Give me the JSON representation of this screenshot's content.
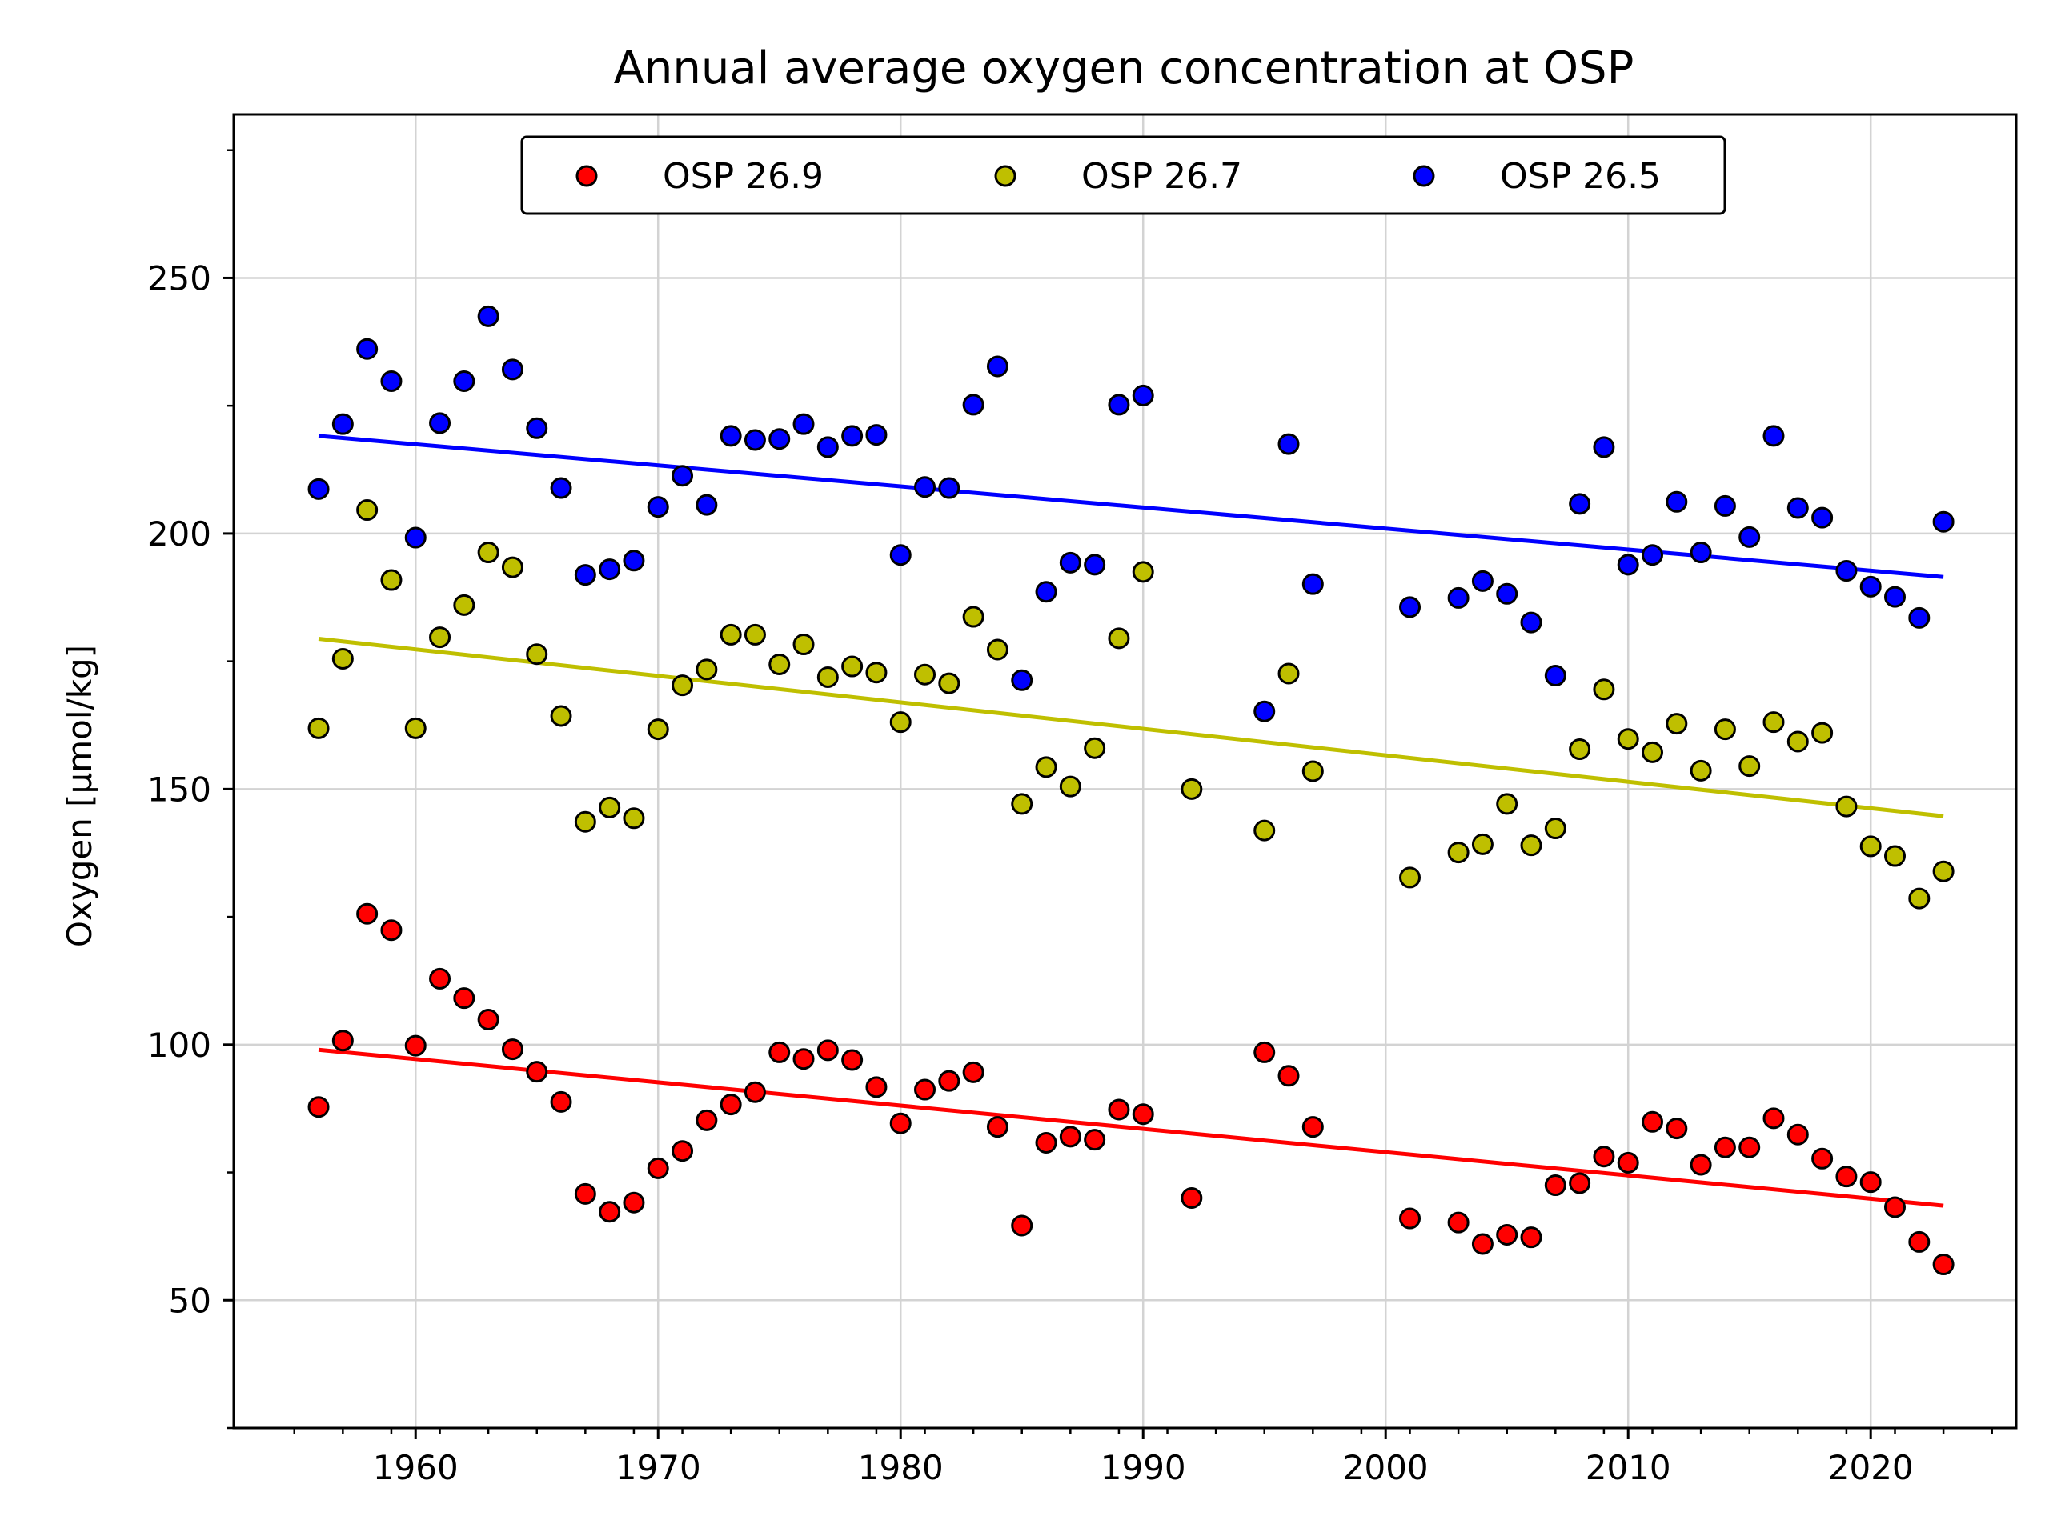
{
  "chart_data": {
    "type": "scatter",
    "title": "Annual average oxygen concentration at OSP",
    "xlabel": "",
    "ylabel": "Oxygen [μmol/kg]",
    "xlim": [
      1952.5,
      2026
    ],
    "ylim": [
      25,
      282
    ],
    "xticks": [
      1960,
      1970,
      1980,
      1990,
      2000,
      2010,
      2020
    ],
    "yticks": [
      50,
      100,
      150,
      200,
      250
    ],
    "grid": true,
    "legend_position": "top-center",
    "series": [
      {
        "name": "OSP 26.9",
        "color": "#ff0000",
        "points": [
          [
            1956,
            87.8
          ],
          [
            1957,
            100.8
          ],
          [
            1958,
            125.6
          ],
          [
            1959,
            122.4
          ],
          [
            1960,
            99.8
          ],
          [
            1961,
            112.9
          ],
          [
            1962,
            109.1
          ],
          [
            1963,
            104.9
          ],
          [
            1964,
            99.1
          ],
          [
            1965,
            94.7
          ],
          [
            1966,
            88.8
          ],
          [
            1967,
            70.8
          ],
          [
            1968,
            67.3
          ],
          [
            1969,
            69.1
          ],
          [
            1970,
            75.8
          ],
          [
            1971,
            79.2
          ],
          [
            1972,
            85.2
          ],
          [
            1973,
            88.3
          ],
          [
            1974,
            90.7
          ],
          [
            1975,
            98.5
          ],
          [
            1976,
            97.2
          ],
          [
            1977,
            98.9
          ],
          [
            1978,
            97.0
          ],
          [
            1979,
            91.7
          ],
          [
            1980,
            84.6
          ],
          [
            1981,
            91.2
          ],
          [
            1982,
            92.9
          ],
          [
            1983,
            94.6
          ],
          [
            1984,
            83.9
          ],
          [
            1985,
            64.6
          ],
          [
            1986,
            80.8
          ],
          [
            1987,
            82.0
          ],
          [
            1988,
            81.4
          ],
          [
            1989,
            87.3
          ],
          [
            1990,
            86.4
          ],
          [
            1992,
            70.0
          ],
          [
            1995,
            98.5
          ],
          [
            1996,
            93.9
          ],
          [
            1997,
            83.9
          ],
          [
            2001,
            66.0
          ],
          [
            2003,
            65.2
          ],
          [
            2004,
            61.0
          ],
          [
            2005,
            62.8
          ],
          [
            2006,
            62.3
          ],
          [
            2007,
            72.5
          ],
          [
            2008,
            72.9
          ],
          [
            2009,
            78.1
          ],
          [
            2010,
            76.9
          ],
          [
            2011,
            84.9
          ],
          [
            2012,
            83.6
          ],
          [
            2013,
            76.5
          ],
          [
            2014,
            79.9
          ],
          [
            2015,
            79.9
          ],
          [
            2016,
            85.6
          ],
          [
            2017,
            82.4
          ],
          [
            2018,
            77.7
          ],
          [
            2019,
            74.2
          ],
          [
            2020,
            73.1
          ],
          [
            2021,
            68.2
          ],
          [
            2022,
            61.4
          ],
          [
            2023,
            57.0
          ]
        ],
        "trend": [
          [
            1956,
            99.0
          ],
          [
            2023,
            68.5
          ]
        ]
      },
      {
        "name": "OSP 26.7",
        "color": "#bfbf00",
        "points": [
          [
            1956,
            161.9
          ],
          [
            1957,
            175.5
          ],
          [
            1958,
            204.6
          ],
          [
            1959,
            190.9
          ],
          [
            1960,
            161.9
          ],
          [
            1961,
            179.7
          ],
          [
            1962,
            186.0
          ],
          [
            1963,
            196.3
          ],
          [
            1964,
            193.4
          ],
          [
            1965,
            176.4
          ],
          [
            1966,
            164.3
          ],
          [
            1967,
            143.6
          ],
          [
            1968,
            146.4
          ],
          [
            1969,
            144.3
          ],
          [
            1970,
            161.7
          ],
          [
            1971,
            170.3
          ],
          [
            1972,
            173.4
          ],
          [
            1973,
            180.2
          ],
          [
            1974,
            180.2
          ],
          [
            1975,
            174.4
          ],
          [
            1976,
            178.3
          ],
          [
            1977,
            171.9
          ],
          [
            1978,
            174.0
          ],
          [
            1979,
            172.8
          ],
          [
            1980,
            163.1
          ],
          [
            1981,
            172.4
          ],
          [
            1982,
            170.7
          ],
          [
            1983,
            183.7
          ],
          [
            1984,
            177.3
          ],
          [
            1985,
            147.1
          ],
          [
            1986,
            154.3
          ],
          [
            1987,
            150.5
          ],
          [
            1988,
            158.0
          ],
          [
            1989,
            179.5
          ],
          [
            1990,
            192.5
          ],
          [
            1992,
            150.0
          ],
          [
            1995,
            141.9
          ],
          [
            1996,
            172.6
          ],
          [
            1997,
            153.5
          ],
          [
            2001,
            132.7
          ],
          [
            2003,
            137.6
          ],
          [
            2004,
            139.2
          ],
          [
            2005,
            147.1
          ],
          [
            2006,
            139.0
          ],
          [
            2007,
            142.3
          ],
          [
            2008,
            157.8
          ],
          [
            2009,
            169.5
          ],
          [
            2010,
            159.8
          ],
          [
            2011,
            157.2
          ],
          [
            2012,
            162.8
          ],
          [
            2013,
            153.6
          ],
          [
            2014,
            161.7
          ],
          [
            2015,
            154.5
          ],
          [
            2016,
            163.1
          ],
          [
            2017,
            159.3
          ],
          [
            2018,
            161.0
          ],
          [
            2019,
            146.6
          ],
          [
            2020,
            138.8
          ],
          [
            2021,
            136.9
          ],
          [
            2022,
            128.6
          ],
          [
            2023,
            133.9
          ]
        ],
        "trend": [
          [
            1956,
            179.4
          ],
          [
            2023,
            144.7
          ]
        ]
      },
      {
        "name": "OSP 26.5",
        "color": "#0000ff",
        "points": [
          [
            1956,
            208.7
          ],
          [
            1957,
            221.4
          ],
          [
            1958,
            236.1
          ],
          [
            1959,
            229.8
          ],
          [
            1960,
            199.2
          ],
          [
            1961,
            221.6
          ],
          [
            1962,
            229.8
          ],
          [
            1963,
            242.5
          ],
          [
            1964,
            232.1
          ],
          [
            1965,
            220.6
          ],
          [
            1966,
            208.9
          ],
          [
            1967,
            191.9
          ],
          [
            1968,
            193.0
          ],
          [
            1969,
            194.7
          ],
          [
            1970,
            205.2
          ],
          [
            1971,
            211.3
          ],
          [
            1972,
            205.6
          ],
          [
            1973,
            219.1
          ],
          [
            1974,
            218.3
          ],
          [
            1975,
            218.5
          ],
          [
            1976,
            221.4
          ],
          [
            1977,
            216.9
          ],
          [
            1978,
            219.1
          ],
          [
            1979,
            219.3
          ],
          [
            1980,
            195.8
          ],
          [
            1981,
            209.1
          ],
          [
            1982,
            208.9
          ],
          [
            1983,
            225.2
          ],
          [
            1984,
            232.7
          ],
          [
            1985,
            171.3
          ],
          [
            1986,
            188.6
          ],
          [
            1987,
            194.3
          ],
          [
            1988,
            193.9
          ],
          [
            1989,
            225.2
          ],
          [
            1990,
            227.0
          ],
          [
            1995,
            165.2
          ],
          [
            1996,
            217.5
          ],
          [
            1997,
            190.1
          ],
          [
            2001,
            185.6
          ],
          [
            2003,
            187.4
          ],
          [
            2004,
            190.7
          ],
          [
            2005,
            188.2
          ],
          [
            2006,
            182.6
          ],
          [
            2007,
            172.2
          ],
          [
            2008,
            205.8
          ],
          [
            2009,
            216.9
          ],
          [
            2010,
            193.9
          ],
          [
            2011,
            195.8
          ],
          [
            2012,
            206.2
          ],
          [
            2013,
            196.3
          ],
          [
            2014,
            205.4
          ],
          [
            2015,
            199.3
          ],
          [
            2016,
            219.1
          ],
          [
            2017,
            205.0
          ],
          [
            2018,
            203.1
          ],
          [
            2019,
            192.7
          ],
          [
            2020,
            189.6
          ],
          [
            2021,
            187.6
          ],
          [
            2022,
            183.5
          ],
          [
            2023,
            202.3
          ]
        ],
        "trend": [
          [
            1956,
            219.1
          ],
          [
            2023,
            191.5
          ]
        ]
      }
    ]
  }
}
